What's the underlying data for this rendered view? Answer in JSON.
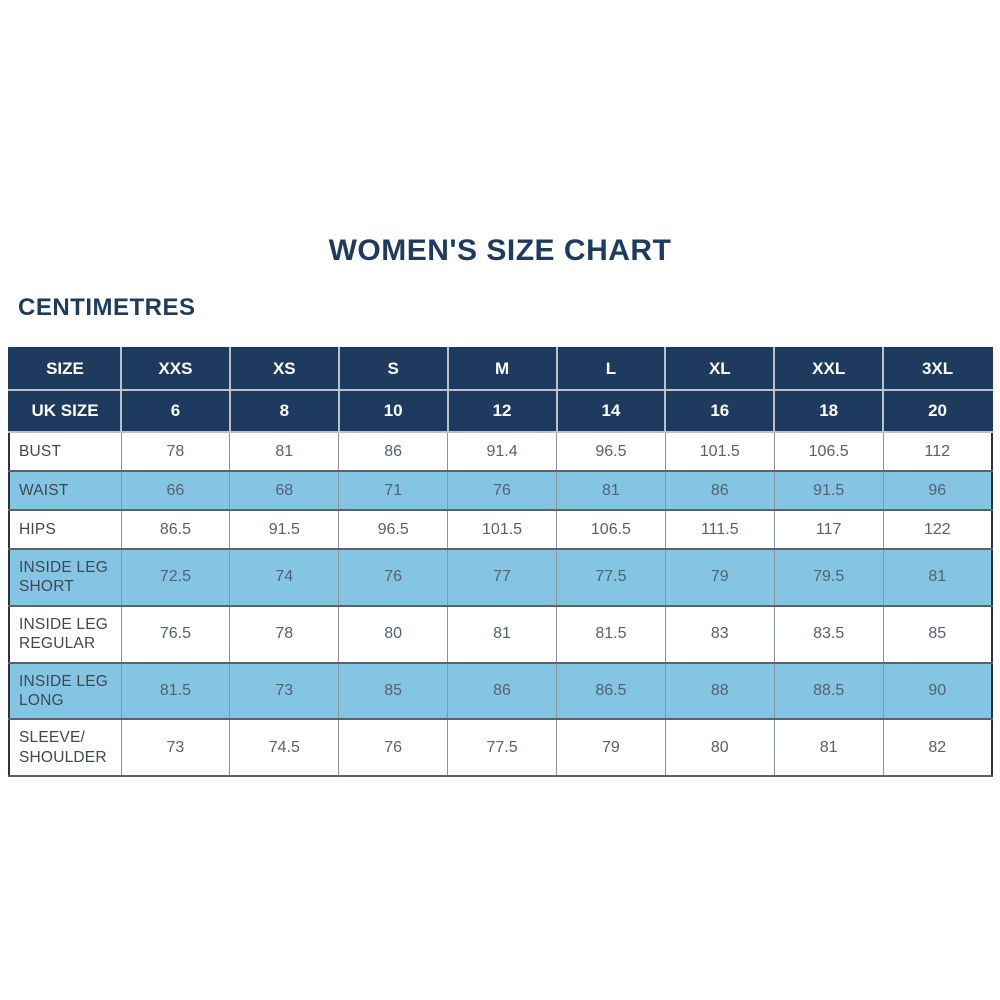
{
  "header": {
    "title": "WOMEN'S SIZE CHART",
    "unit_label": "CENTIMETRES"
  },
  "colors": {
    "navy": "#1e3a5e",
    "light_blue": "#84c5e4",
    "header_text": "#ffffff",
    "label_text": "#3f4752",
    "value_text": "#566070",
    "title_text": "#1e3a5f"
  },
  "chart_data": {
    "type": "table",
    "title": "WOMEN'S SIZE CHART",
    "unit": "CENTIMETRES",
    "header_rows": [
      {
        "label": "SIZE",
        "values": [
          "XXS",
          "XS",
          "S",
          "M",
          "L",
          "XL",
          "XXL",
          "3XL"
        ]
      },
      {
        "label": "UK SIZE",
        "values": [
          "6",
          "8",
          "10",
          "12",
          "14",
          "16",
          "18",
          "20"
        ]
      }
    ],
    "rows": [
      {
        "label": "BUST",
        "values": [
          "78",
          "81",
          "86",
          "91.4",
          "96.5",
          "101.5",
          "106.5",
          "112"
        ]
      },
      {
        "label": "WAIST",
        "values": [
          "66",
          "68",
          "71",
          "76",
          "81",
          "86",
          "91.5",
          "96"
        ]
      },
      {
        "label": "HIPS",
        "values": [
          "86.5",
          "91.5",
          "96.5",
          "101.5",
          "106.5",
          "111.5",
          "117",
          "122"
        ]
      },
      {
        "label": "INSIDE LEG SHORT",
        "values": [
          "72.5",
          "74",
          "76",
          "77",
          "77.5",
          "79",
          "79.5",
          "81"
        ]
      },
      {
        "label": "INSIDE LEG REGULAR",
        "values": [
          "76.5",
          "78",
          "80",
          "81",
          "81.5",
          "83",
          "83.5",
          "85"
        ]
      },
      {
        "label": "INSIDE LEG LONG",
        "values": [
          "81.5",
          "73",
          "85",
          "86",
          "86.5",
          "88",
          "88.5",
          "90"
        ]
      },
      {
        "label": "SLEEVE/SHOULDER",
        "values": [
          "73",
          "74.5",
          "76",
          "77.5",
          "79",
          "80",
          "81",
          "82"
        ]
      }
    ]
  }
}
